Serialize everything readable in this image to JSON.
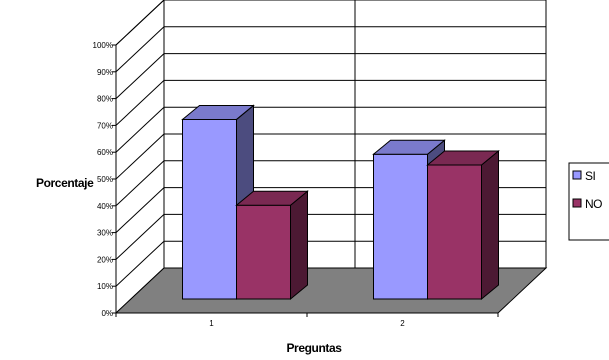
{
  "chart_data": {
    "type": "bar",
    "categories": [
      "1",
      "2"
    ],
    "series": [
      {
        "name": "SI",
        "values": [
          67,
          54
        ],
        "color": "#9999ff",
        "side_color": "#4c4c7f",
        "top_color": "#7a7acc"
      },
      {
        "name": "NO",
        "values": [
          35,
          50
        ],
        "color": "#993366",
        "side_color": "#4c1933",
        "top_color": "#7a2952"
      }
    ],
    "ylim": [
      0,
      100
    ],
    "yticks": [
      "0%",
      "10%",
      "20%",
      "30%",
      "40%",
      "50%",
      "60%",
      "70%",
      "80%",
      "90%",
      "100%"
    ],
    "xlabel": "Preguntas",
    "ylabel": "Porcentaje",
    "legend_position": "right",
    "grid": true,
    "three_d": true,
    "floor_color": "#808080"
  }
}
